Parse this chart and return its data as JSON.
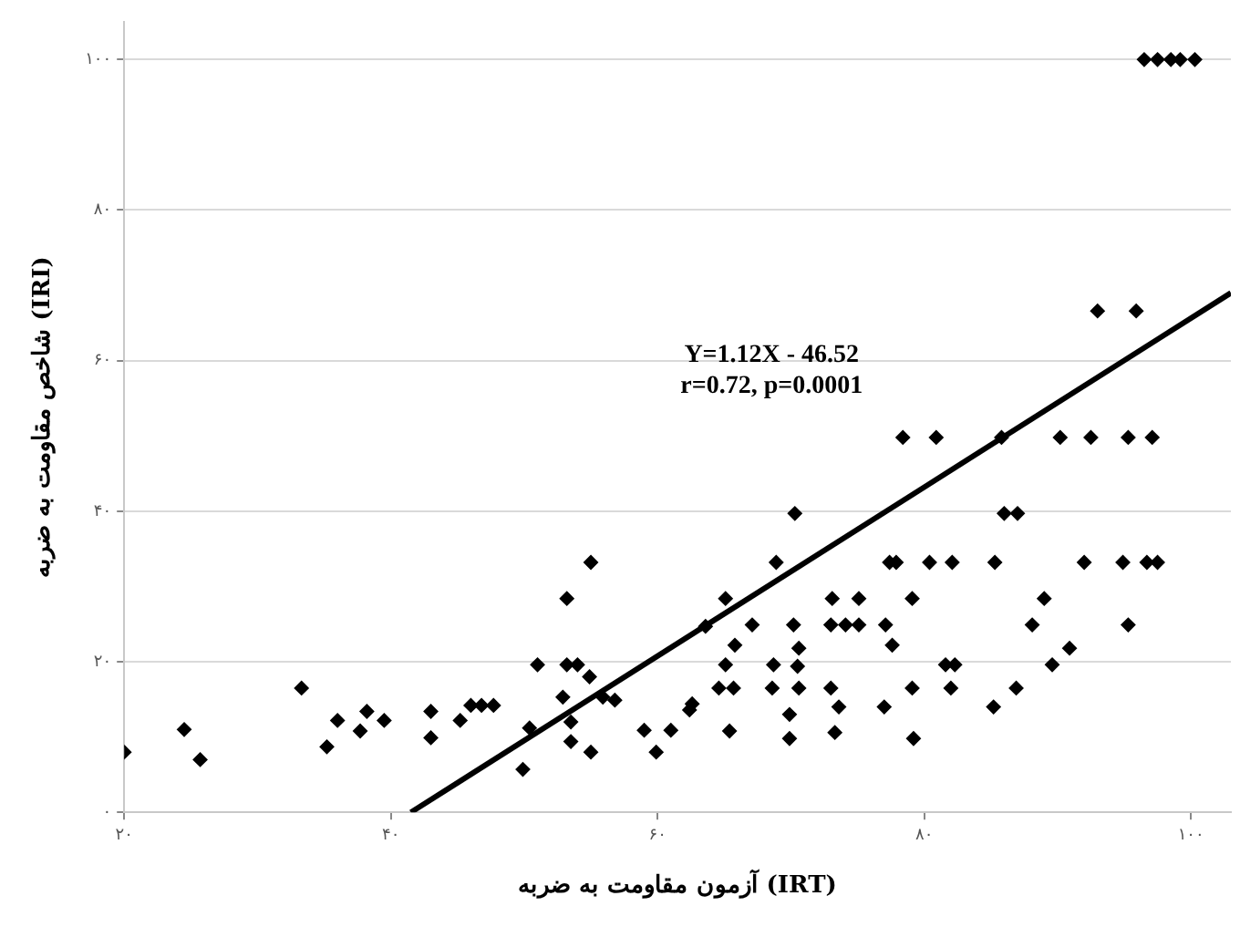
{
  "chart_data": {
    "type": "scatter",
    "xlabel": "آزمون مقاومت به ضربه (IRT)",
    "ylabel": "شاخص مقاومت به ضربه (IRI)",
    "annotations": [
      "Y=1.12X - 46.52",
      "r=0.72, p=0.0001"
    ],
    "xlim": [
      20,
      103
    ],
    "ylim": [
      0,
      105
    ],
    "xticks": [
      {
        "value": 20,
        "label": "۲۰"
      },
      {
        "value": 40,
        "label": "۴۰"
      },
      {
        "value": 60,
        "label": "۶۰"
      },
      {
        "value": 80,
        "label": "۸۰"
      },
      {
        "value": 100,
        "label": "۱۰۰"
      }
    ],
    "yticks": [
      {
        "value": 0,
        "label": "۰"
      },
      {
        "value": 20,
        "label": "۲۰"
      },
      {
        "value": 40,
        "label": "۴۰"
      },
      {
        "value": 60,
        "label": "۶۰"
      },
      {
        "value": 80,
        "label": "۸۰"
      },
      {
        "value": 100,
        "label": "۱۰۰"
      }
    ],
    "grid": "y",
    "legend": false,
    "series": [
      {
        "marker": "diamond",
        "color": "#000000",
        "x": [
          20,
          24.5,
          25.7,
          33.3,
          35.2,
          36,
          37.7,
          38.2,
          39.5,
          43,
          43,
          45.2,
          46,
          46.8,
          47.7,
          49.9,
          50.4,
          51,
          53.2,
          53.2,
          54,
          52.9,
          53.5,
          53.5,
          55,
          54.9,
          55,
          55.9,
          56.8,
          59,
          59.9,
          61,
          62.6,
          62.4,
          63.6,
          65.1,
          65.1,
          64.6,
          65.7,
          65.4,
          65.8,
          67.1,
          68.9,
          70.3,
          68.7,
          68.6,
          70.2,
          70.6,
          70.5,
          70.6,
          69.9,
          69.9,
          73.1,
          75.1,
          73,
          74.1,
          75.1,
          73,
          73.6,
          73.3,
          77.1,
          77.6,
          77,
          77.4,
          77.9,
          78.4,
          80.9,
          80.4,
          82.1,
          79.1,
          79.1,
          79.2,
          81.6,
          82.3,
          82,
          85.2,
          85.3,
          85.8,
          86,
          87,
          86.9,
          88.1,
          89,
          89.6,
          90.9,
          90.2,
          92,
          92.5,
          94.9,
          95.3,
          95.3,
          97.1,
          96.7,
          97.5,
          93,
          95.9,
          96.5,
          97.5,
          98.5,
          99.2,
          100.3
        ],
        "values": [
          8,
          11,
          7,
          16.5,
          8.7,
          12.2,
          10.8,
          13.4,
          12.2,
          13.4,
          9.9,
          12.2,
          14.2,
          14.2,
          14.2,
          5.7,
          11.2,
          19.6,
          28.4,
          19.6,
          19.6,
          15.3,
          12,
          9.4,
          33.2,
          18,
          8,
          15.3,
          14.9,
          10.9,
          8,
          10.9,
          14.4,
          13.6,
          24.7,
          28.4,
          19.6,
          16.5,
          16.5,
          10.8,
          22.2,
          24.9,
          33.2,
          39.7,
          19.6,
          16.5,
          24.9,
          21.8,
          19.4,
          16.5,
          13,
          9.8,
          28.4,
          28.4,
          24.9,
          24.9,
          24.9,
          16.5,
          14,
          10.6,
          24.9,
          22.2,
          14,
          33.2,
          33.2,
          49.8,
          49.8,
          33.2,
          33.2,
          28.4,
          16.5,
          9.8,
          19.6,
          19.6,
          16.5,
          14,
          33.2,
          49.8,
          39.7,
          39.7,
          16.5,
          24.9,
          28.4,
          19.6,
          21.8,
          49.8,
          33.2,
          49.8,
          33.2,
          24.9,
          49.8,
          49.8,
          33.2,
          33.2,
          66.6,
          66.6,
          100,
          100,
          100,
          100,
          100
        ]
      },
      {
        "type": "line",
        "marker": "none",
        "color": "#000000",
        "x": [
          41.5,
          103
        ],
        "values": [
          0,
          69
        ]
      }
    ]
  }
}
